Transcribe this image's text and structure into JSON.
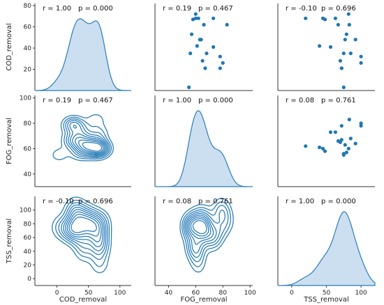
{
  "chart_data": {
    "type": "pairplot",
    "variables": [
      "COD_removal",
      "FOG_removal",
      "TSS_removal"
    ],
    "axis_ranges": {
      "COD_removal": [
        -35,
        118
      ],
      "FOG_removal": [
        30,
        102
      ],
      "TSS_removal": [
        -20,
        120
      ]
    },
    "ticks": {
      "x": [
        [
          "0",
          "50",
          "100"
        ],
        [
          "40",
          "60",
          "80",
          "100"
        ],
        [
          "0",
          "50",
          "100"
        ]
      ],
      "y": [
        [
          "20",
          "40",
          "60",
          "80"
        ],
        [
          "40",
          "60",
          "80",
          "100"
        ],
        [
          "0",
          "20",
          "40",
          "60",
          "80",
          "100"
        ]
      ]
    },
    "scatter_y_ranges": {
      "COD_removal": [
        0,
        82
      ],
      "FOG_removal": [
        30,
        102
      ],
      "TSS_removal": [
        -10,
        120
      ]
    },
    "colors": {
      "line": "#2a7db8",
      "fill": "#c6dcee",
      "point": "#1f77b4"
    },
    "points": {
      "COD_removal": [
        68,
        72,
        53,
        67,
        48,
        48,
        35,
        21,
        32,
        41,
        21,
        26,
        28,
        62,
        42,
        62,
        68,
        35,
        68,
        3
      ],
      "FOG_removal": [
        62,
        60,
        57,
        58,
        63,
        64,
        68,
        67,
        78,
        73,
        78,
        80,
        65,
        83,
        61,
        66,
        60,
        56,
        73,
        55
      ],
      "TSS_removal": [
        20,
        82,
        79,
        48,
        77,
        92,
        85,
        72,
        100,
        56,
        72,
        100,
        70,
        83,
        40,
        67,
        45,
        75,
        63,
        75
      ]
    },
    "stats": {
      "0-0": {
        "r": "r = 1.00",
        "p": "p = 0.000"
      },
      "0-1": {
        "r": "r = 0.19",
        "p": "p = 0.467"
      },
      "0-2": {
        "r": "r = -0.10",
        "p": "p = 0.696"
      },
      "1-0": {
        "r": "r = 0.19",
        "p": "p = 0.467"
      },
      "1-1": {
        "r": "r = 1.00",
        "p": "p = 0.000"
      },
      "1-2": {
        "r": "r = 0.08",
        "p": "p = 0.761"
      },
      "2-0": {
        "r": "r = -0.10",
        "p": "p = 0.696"
      },
      "2-1": {
        "r": "r = 0.08",
        "p": "p = 0.761"
      },
      "2-2": {
        "r": "r = 1.00",
        "p": "p = 0.000"
      }
    }
  }
}
